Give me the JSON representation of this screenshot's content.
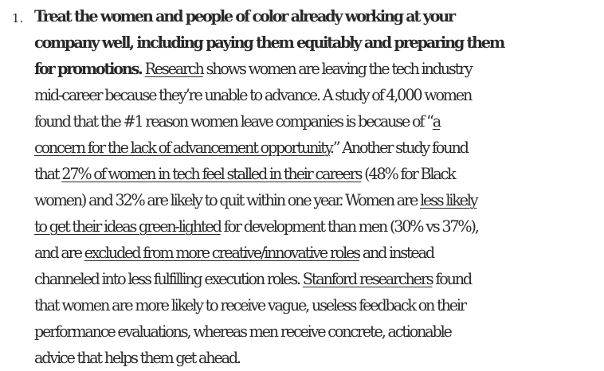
{
  "list": {
    "number": "1.",
    "heading": [
      "Treat the women and people of color already working at your",
      "company well, including paying them equitably and preparing them",
      "for promotions."
    ],
    "links": {
      "research": "Research",
      "concern_1": "a",
      "concern_2": "concern for the lack of advancement opportunity",
      "stalled": "27% of women in tech feel stalled in their careers",
      "green_1": "less likely",
      "green_2": "to get their ideas green-lighted",
      "excluded": "excluded from more creative/innovative roles",
      "stanford": "Stanford researchers"
    },
    "text": {
      "l3_after": " shows women are leaving the tech industry",
      "l4": "mid-career because they’re unable to advance. A study of 4,000 women",
      "l5_before": "found that the #1 reason women leave companies is because of “",
      "l6_after": ".” Another study found",
      "l7_before": "that ",
      "l7_after": " (48% for Black",
      "l8_before": "women) and 32% are likely to quit within one year. Women are ",
      "l9_after": " for development than men (30% vs 37%),",
      "l10_before": "and are ",
      "l10_after": " and instead",
      "l11_before": "channeled into less fulfilling execution roles. ",
      "l11_after": " found",
      "l12": "that women are more likely to receive vague, useless feedback on their",
      "l13": "performance evaluations, whereas men receive concrete, actionable",
      "l14": "advice that helps them get ahead."
    }
  }
}
